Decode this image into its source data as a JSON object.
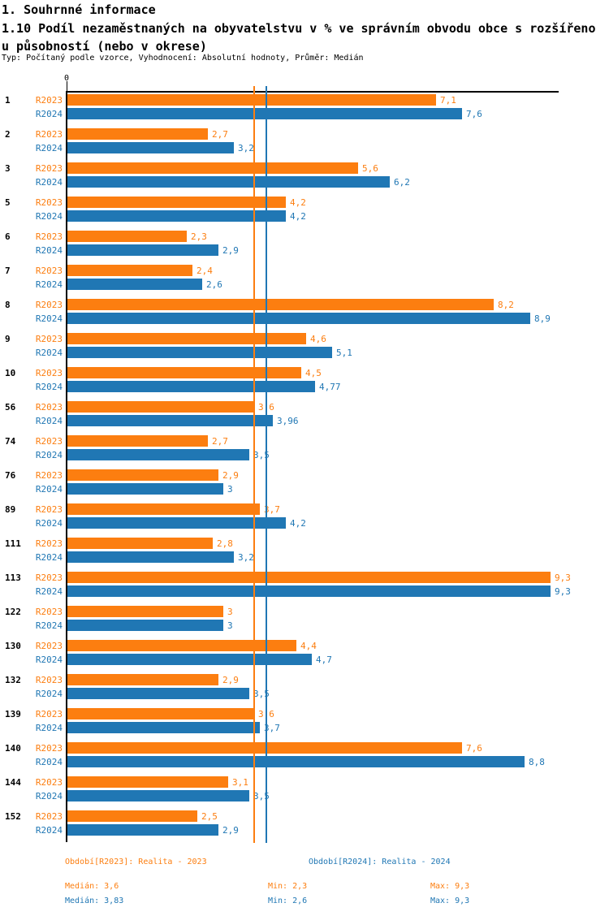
{
  "header": {
    "section_title": "1. Souhrnné informace",
    "title_lines": [
      "1.10 Podíl nezaměstnaných na obyvatelstvu v % ve správním obvodu obce s rozšířeno",
      "u působností (nebo v okrese)"
    ],
    "subtitle": "Typ: Počítaný podle vzorce, Vyhodnocení: Absolutní hodnoty, Průměr: Medián"
  },
  "chart_data": {
    "type": "bar",
    "orientation": "horizontal",
    "x_axis": {
      "zero_label": "0",
      "min": 0,
      "approx_max": 9.5,
      "gridlines": false
    },
    "series": [
      {
        "name": "R2023",
        "color": "#fc7e10"
      },
      {
        "name": "R2024",
        "color": "#2077b4"
      }
    ],
    "rows": [
      {
        "category": "1",
        "r2023": "7,1",
        "r2024": "7,6"
      },
      {
        "category": "2",
        "r2023": "2,7",
        "r2024": "3,2"
      },
      {
        "category": "3",
        "r2023": "5,6",
        "r2024": "6,2"
      },
      {
        "category": "5",
        "r2023": "4,2",
        "r2024": "4,2"
      },
      {
        "category": "6",
        "r2023": "2,3",
        "r2024": "2,9"
      },
      {
        "category": "7",
        "r2023": "2,4",
        "r2024": "2,6"
      },
      {
        "category": "8",
        "r2023": "8,2",
        "r2024": "8,9"
      },
      {
        "category": "9",
        "r2023": "4,6",
        "r2024": "5,1"
      },
      {
        "category": "10",
        "r2023": "4,5",
        "r2024": "4,77"
      },
      {
        "category": "56",
        "r2023": "3,6",
        "r2024": "3,96"
      },
      {
        "category": "74",
        "r2023": "2,7",
        "r2024": "3,5"
      },
      {
        "category": "76",
        "r2023": "2,9",
        "r2024": "3"
      },
      {
        "category": "89",
        "r2023": "3,7",
        "r2024": "4,2"
      },
      {
        "category": "111",
        "r2023": "2,8",
        "r2024": "3,2"
      },
      {
        "category": "113",
        "r2023": "9,3",
        "r2024": "9,3"
      },
      {
        "category": "122",
        "r2023": "3",
        "r2024": "3"
      },
      {
        "category": "130",
        "r2023": "4,4",
        "r2024": "4,7"
      },
      {
        "category": "132",
        "r2023": "2,9",
        "r2024": "3,5"
      },
      {
        "category": "139",
        "r2023": "3,6",
        "r2024": "3,7"
      },
      {
        "category": "140",
        "r2023": "7,6",
        "r2024": "8,8"
      },
      {
        "category": "144",
        "r2023": "3,1",
        "r2024": "3,5"
      },
      {
        "category": "152",
        "r2023": "2,5",
        "r2024": "2,9"
      }
    ],
    "median_lines": {
      "r2023": "3,6",
      "r2024": "3,83"
    }
  },
  "footer": {
    "legend": [
      {
        "series": "R2023",
        "text": "Období[R2023]: Realita - 2023"
      },
      {
        "series": "R2024",
        "text": "Období[R2024]: Realita - 2024"
      }
    ],
    "stats": [
      {
        "series": "R2023",
        "median": "Medián: 3,6",
        "min": "Min: 2,3",
        "max": "Max: 9,3"
      },
      {
        "series": "R2024",
        "median": "Medián: 3,83",
        "min": "Min: 2,6",
        "max": "Max: 9,3"
      }
    ]
  }
}
